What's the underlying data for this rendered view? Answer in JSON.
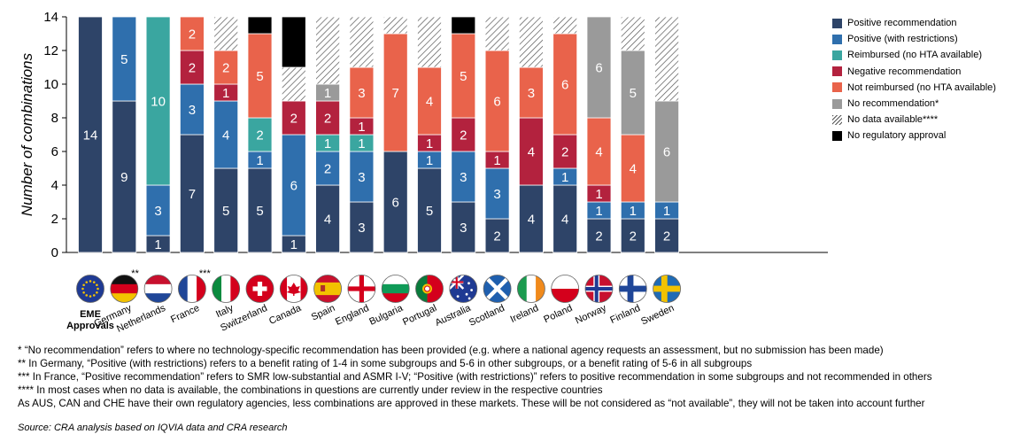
{
  "chart_data": {
    "type": "bar",
    "stacked": true,
    "ylabel": "Number of combinations",
    "ylim": [
      0,
      14
    ],
    "yticks": [
      0,
      2,
      4,
      6,
      8,
      10,
      12,
      14
    ],
    "categories": [
      "EME Approvals",
      "Germany",
      "Netherlands",
      "France",
      "Italy",
      "Switzerland",
      "Canada",
      "Spain",
      "England",
      "Bulgaria",
      "Portugal",
      "Australia",
      "Scotland",
      "Ireland",
      "Poland",
      "Norway",
      "Finland",
      "Sweden"
    ],
    "category_marks": [
      "",
      "**",
      "",
      "***",
      "",
      "",
      "",
      "",
      "",
      "",
      "",
      "",
      "",
      "",
      "",
      "",
      "",
      ""
    ],
    "flag_icons": [
      "eu-flag-icon",
      "germany-flag-icon",
      "netherlands-flag-icon",
      "france-flag-icon",
      "italy-flag-icon",
      "switzerland-flag-icon",
      "canada-flag-icon",
      "spain-flag-icon",
      "england-flag-icon",
      "bulgaria-flag-icon",
      "portugal-flag-icon",
      "australia-flag-icon",
      "scotland-flag-icon",
      "ireland-flag-icon",
      "poland-flag-icon",
      "norway-flag-icon",
      "finland-flag-icon",
      "sweden-flag-icon"
    ],
    "series": [
      {
        "name": "Positive recommendation",
        "color": "#2e4468",
        "label_color": "#ffffff",
        "values": [
          14,
          9,
          1,
          7,
          5,
          5,
          1,
          4,
          3,
          6,
          5,
          3,
          2,
          4,
          4,
          2,
          2,
          2
        ]
      },
      {
        "name": "Positive (with restrictions)",
        "color": "#2f6fad",
        "label_color": "#ffffff",
        "values": [
          0,
          5,
          3,
          3,
          4,
          1,
          6,
          2,
          3,
          0,
          1,
          3,
          3,
          0,
          1,
          1,
          1,
          1
        ]
      },
      {
        "name": "Reimbursed (no HTA available)",
        "color": "#3aa6a0",
        "label_color": "#ffffff",
        "values": [
          0,
          0,
          10,
          0,
          0,
          2,
          0,
          1,
          1,
          0,
          0,
          0,
          0,
          0,
          0,
          0,
          0,
          0
        ]
      },
      {
        "name": "Negative recommendation",
        "color": "#b3223e",
        "label_color": "#ffffff",
        "values": [
          0,
          0,
          0,
          2,
          1,
          0,
          2,
          2,
          1,
          0,
          1,
          2,
          1,
          4,
          2,
          1,
          0,
          0
        ]
      },
      {
        "name": "Not reimbursed (no HTA available)",
        "color": "#e9634b",
        "label_color": "#ffffff",
        "values": [
          0,
          0,
          0,
          2,
          2,
          5,
          0,
          0,
          3,
          7,
          4,
          5,
          6,
          3,
          6,
          4,
          4,
          0
        ]
      },
      {
        "name": "No recommendation*",
        "color": "#9a9a9a",
        "label_color": "#ffffff",
        "values": [
          0,
          0,
          0,
          0,
          0,
          0,
          0,
          1,
          0,
          0,
          0,
          0,
          0,
          0,
          0,
          6,
          5,
          6
        ]
      },
      {
        "name": "No data available****",
        "color": "hatch",
        "label_color": "#000000",
        "values": [
          0,
          0,
          0,
          0,
          2,
          0,
          2,
          4,
          3,
          1,
          3,
          0,
          2,
          3,
          1,
          0,
          2,
          5
        ]
      },
      {
        "name": "No regulatory approval",
        "color": "#000000",
        "label_color": "#ffffff",
        "values": [
          0,
          0,
          0,
          0,
          0,
          1,
          3,
          0,
          0,
          0,
          0,
          1,
          0,
          0,
          0,
          0,
          0,
          0
        ]
      }
    ]
  },
  "footnotes": [
    "* “No recommendation” refers to where no technology-specific recommendation has been provided (e.g. where a national agency requests an assessment, but no submission has been made)",
    "** In Germany, “Positive (with restrictions) refers to a benefit rating of 1-4 in some subgroups and 5-6 in other subgroups, or a benefit rating of 5-6 in all subgroups",
    "*** In France, “Positive recommendation” refers to SMR low-substantial and ASMR I-V; “Positive (with restrictions)” refers to positive recommendation in some subgroups and not recommended in others",
    "**** In most cases when no data is available, the combinations in questions are currently under review in the respective countries",
    "As AUS, CAN and CHE have their own regulatory agencies, less combinations are approved in these markets. These will be not considered as “not available”, they will not be taken into account further"
  ],
  "source": "Source: CRA analysis based on IQVIA data and CRA research"
}
